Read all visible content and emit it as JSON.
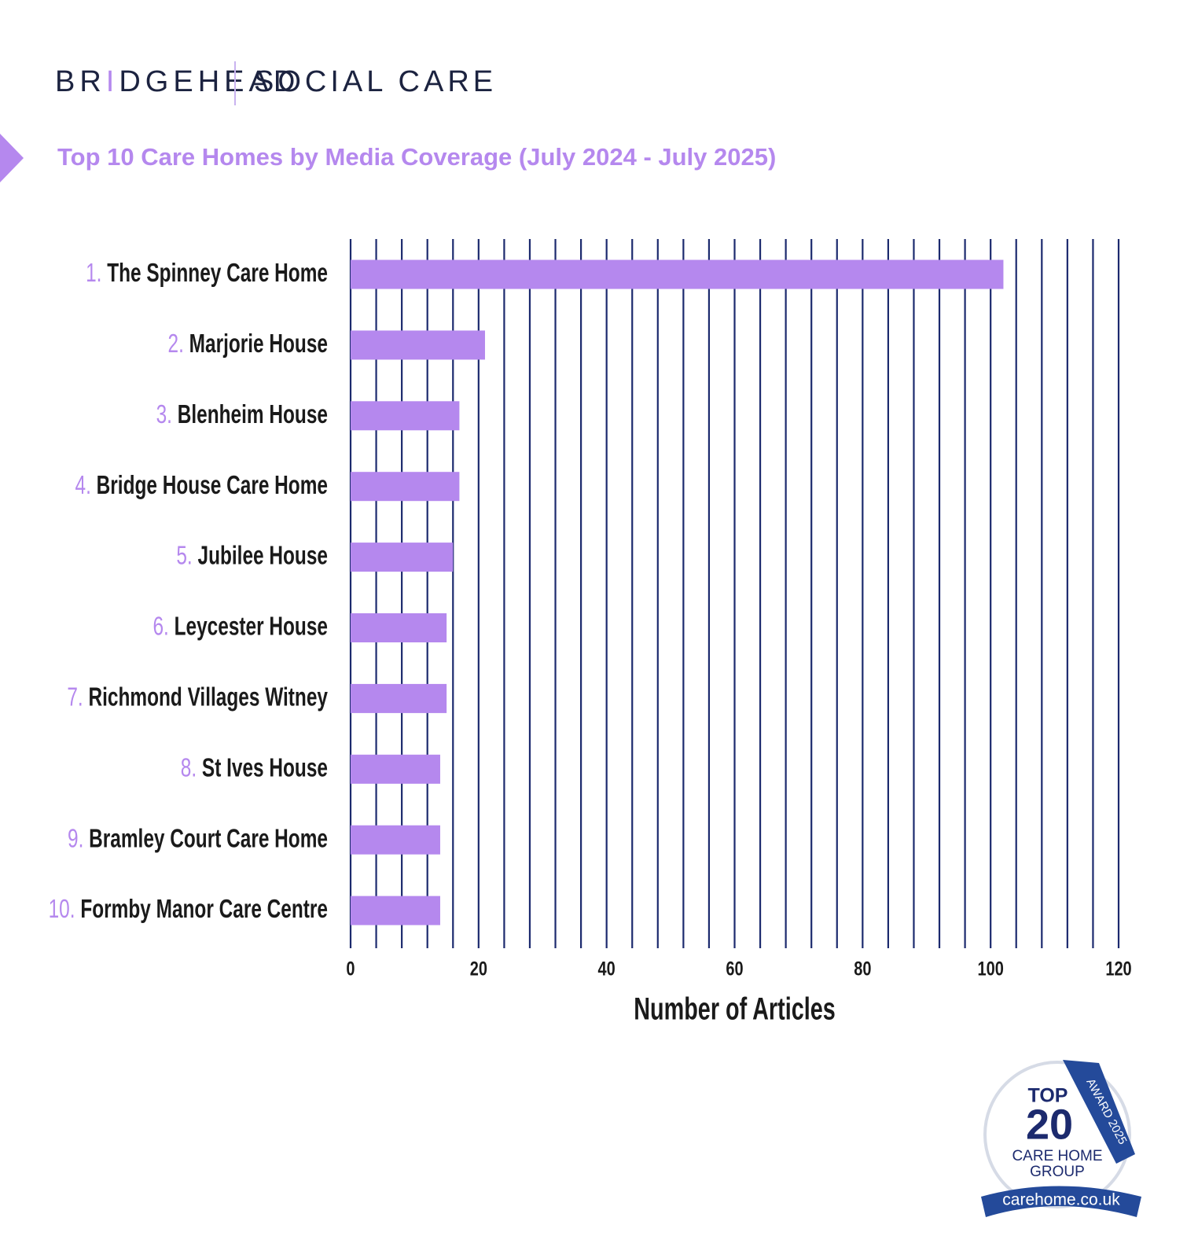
{
  "logo": {
    "brand": [
      "BR",
      "I",
      "DGEHEAD"
    ],
    "division": "SOCIAL CARE"
  },
  "chart_data": {
    "type": "bar",
    "orientation": "horizontal",
    "title": "Top 10 Care Homes by Media Coverage (July 2024 - July 2025)",
    "ranks": [
      "1.",
      "2.",
      "3.",
      "4.",
      "5.",
      "6.",
      "7.",
      "8.",
      "9.",
      "10."
    ],
    "categories": [
      "The Spinney Care Home",
      "Marjorie House",
      "Blenheim House",
      "Bridge House Care Home",
      "Jubilee House",
      "Leycester House",
      "Richmond Villages Witney",
      "St Ives House",
      "Bramley Court Care Home",
      "Formby Manor Care Centre"
    ],
    "values": [
      102,
      21,
      17,
      17,
      16,
      15,
      15,
      14,
      14,
      14
    ],
    "color": "#b588ee",
    "rank_color": "#b588ee",
    "grid_color": "#1c2a6e",
    "xlabel": "Number of Articles",
    "xlim": [
      0,
      120
    ],
    "xticks": [
      0,
      20,
      40,
      60,
      80,
      100,
      120
    ],
    "xgrid": [
      0,
      4,
      8,
      12,
      16,
      20,
      24,
      28,
      32,
      36,
      40,
      44,
      48,
      52,
      56,
      60,
      64,
      68,
      72,
      76,
      80,
      84,
      88,
      92,
      96,
      100,
      104,
      108,
      112,
      116,
      120
    ],
    "grid": true
  },
  "badge": {
    "top": "TOP",
    "number": "20",
    "line1": "CARE HOME",
    "line2": "GROUP",
    "ribbon": "AWARD 2025",
    "site": "carehome.co.uk"
  }
}
